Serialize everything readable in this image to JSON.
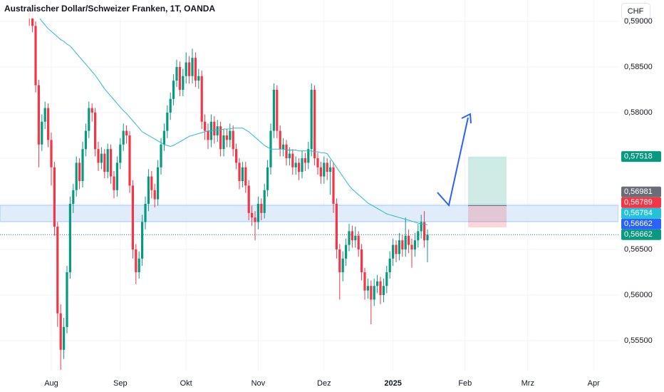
{
  "chart_data": {
    "type": "candlestick",
    "title": "Australischer Dollar/Schweizer Franken, 1T, OANDA",
    "currency": "CHF",
    "categories": [
      null,
      null,
      null,
      null,
      null,
      null,
      null,
      "Aug",
      null,
      null,
      null,
      null,
      null,
      null,
      null,
      null,
      null,
      null,
      null,
      null,
      null,
      null,
      null,
      null,
      null,
      null,
      null,
      null,
      null,
      "Sep",
      null,
      null,
      null,
      null,
      null,
      null,
      null,
      null,
      null,
      null,
      null,
      null,
      null,
      null,
      null,
      null,
      null,
      null,
      null,
      null,
      "Okt",
      null,
      null,
      null,
      null,
      null,
      null,
      null,
      null,
      null,
      null,
      null,
      null,
      null,
      null,
      null,
      null,
      null,
      null,
      null,
      null,
      null,
      null,
      "Nov",
      null,
      null,
      null,
      null,
      null,
      null,
      null,
      null,
      null,
      null,
      null,
      null,
      null,
      null,
      null,
      null,
      null,
      null,
      null,
      null,
      "Dez",
      null,
      null,
      null,
      null,
      null,
      null,
      null,
      null,
      null,
      null,
      null,
      null,
      null,
      null,
      null,
      null,
      null,
      null,
      null,
      null,
      null,
      "2025",
      null,
      null,
      null,
      null,
      null,
      null,
      null,
      null,
      null,
      null,
      null,
      null,
      null,
      null,
      null,
      null,
      null,
      null,
      null,
      null,
      null,
      null,
      "Feb",
      null,
      null,
      null,
      null,
      null,
      null,
      null,
      null,
      null,
      null,
      null,
      null,
      null,
      null,
      null,
      null,
      null,
      null,
      null,
      "Mrz",
      null,
      null,
      null,
      null,
      null,
      null,
      null,
      null,
      null,
      null,
      null,
      null,
      null,
      null,
      null,
      null,
      null,
      null,
      null,
      null,
      "Apr"
    ],
    "open": [
      0.591,
      0.5905,
      0.5895,
      0.583,
      0.5765,
      0.579,
      0.5805,
      0.577,
      0.574,
      0.5675,
      0.558,
      0.554,
      0.5565,
      0.5625,
      0.57,
      0.5715,
      0.5745,
      0.5725,
      0.576,
      0.578,
      0.5805,
      0.58,
      0.576,
      0.5745,
      0.5755,
      0.5735,
      0.576,
      0.573,
      0.5715,
      0.5745,
      0.5765,
      0.578,
      0.5775,
      0.572,
      0.565,
      0.5625,
      0.564,
      0.568,
      0.57,
      0.573,
      0.5715,
      0.5705,
      0.574,
      0.5765,
      0.578,
      0.58,
      0.5815,
      0.5835,
      0.585,
      0.5825,
      0.584,
      0.5855,
      0.584,
      0.586,
      0.5835,
      0.584,
      0.579,
      0.578,
      0.577,
      0.579,
      0.5775,
      0.5785,
      0.576,
      0.5775,
      0.577,
      0.578,
      0.576,
      0.5745,
      0.5725,
      0.574,
      0.572,
      0.569,
      0.5685,
      0.568,
      0.57,
      0.569,
      0.5715,
      0.574,
      0.578,
      0.5825,
      0.578,
      0.576,
      0.5765,
      0.575,
      0.5755,
      0.574,
      0.5745,
      0.5735,
      0.575,
      0.5745,
      0.576,
      0.5825,
      0.575,
      0.574,
      0.573,
      0.5745,
      0.5735,
      0.574,
      0.57,
      0.565,
      0.5625,
      0.564,
      0.5655,
      0.567,
      0.566,
      0.5665,
      0.565,
      0.5625,
      0.5605,
      0.561,
      0.5595,
      0.561,
      0.5615,
      0.56,
      0.561,
      0.5625,
      0.564,
      0.5655,
      0.5645,
      0.566,
      0.565,
      0.5665,
      0.5655,
      0.565,
      0.566,
      0.567,
      0.568,
      0.566,
      null,
      null,
      null,
      null,
      null,
      null,
      null,
      null,
      null,
      null,
      null,
      null,
      null,
      null,
      null,
      null,
      null,
      null,
      null,
      null,
      null,
      null,
      null,
      null,
      null,
      null,
      null,
      null,
      null,
      null,
      null,
      null,
      null,
      null,
      null,
      null,
      null,
      null,
      null,
      null,
      null,
      null,
      null,
      null,
      null,
      null,
      null,
      null,
      null,
      null,
      null,
      null,
      null
    ],
    "high": [
      0.593,
      0.5912,
      0.59,
      0.5836,
      0.5798,
      0.5812,
      0.581,
      0.5778,
      0.5746,
      0.568,
      0.559,
      0.5575,
      0.5632,
      0.5708,
      0.5722,
      0.5752,
      0.575,
      0.5768,
      0.5788,
      0.5812,
      0.581,
      0.5805,
      0.5768,
      0.5762,
      0.576,
      0.5766,
      0.5765,
      0.5736,
      0.5752,
      0.5772,
      0.5788,
      0.5786,
      0.578,
      0.5726,
      0.5656,
      0.5648,
      0.5688,
      0.5708,
      0.5738,
      0.5736,
      0.5722,
      0.5748,
      0.5772,
      0.5788,
      0.5808,
      0.5822,
      0.5842,
      0.5858,
      0.5856,
      0.5848,
      0.5866,
      0.5862,
      0.587,
      0.5866,
      0.5848,
      0.5846,
      0.5798,
      0.5788,
      0.5798,
      0.5796,
      0.5792,
      0.579,
      0.5782,
      0.5782,
      0.5788,
      0.5786,
      0.5766,
      0.575,
      0.5746,
      0.5746,
      0.5726,
      0.5698,
      0.5692,
      0.5708,
      0.5706,
      0.5722,
      0.5748,
      0.5788,
      0.5832,
      0.583,
      0.5786,
      0.5772,
      0.577,
      0.5762,
      0.576,
      0.5752,
      0.575,
      0.5758,
      0.5756,
      0.5768,
      0.5832,
      0.583,
      0.5756,
      0.5746,
      0.5752,
      0.575,
      0.5748,
      0.5746,
      0.5706,
      0.5656,
      0.5648,
      0.5662,
      0.5678,
      0.5676,
      0.5675,
      0.567,
      0.5656,
      0.563,
      0.5618,
      0.5616,
      0.5618,
      0.5622,
      0.562,
      0.5618,
      0.5632,
      0.5648,
      0.5662,
      0.566,
      0.5668,
      0.5666,
      0.5685,
      0.5672,
      0.5662,
      0.5668,
      0.5678,
      0.5688,
      0.5692,
      0.5672,
      null,
      null,
      null,
      null,
      null,
      null,
      null,
      null,
      null,
      null,
      null,
      null,
      null,
      null,
      null,
      null,
      null,
      null,
      null,
      null,
      null,
      null,
      null,
      null,
      null,
      null,
      null,
      null,
      null,
      null,
      null,
      null,
      null,
      null,
      null,
      null,
      null,
      null,
      null,
      null,
      null,
      null,
      null,
      null,
      null,
      null,
      null,
      null,
      null,
      null,
      null,
      null,
      null
    ],
    "low": [
      0.5895,
      0.5888,
      0.5822,
      0.574,
      0.5758,
      0.5782,
      0.5762,
      0.572,
      0.5665,
      0.5565,
      0.5518,
      0.553,
      0.5558,
      0.5618,
      0.569,
      0.5708,
      0.5716,
      0.5718,
      0.5752,
      0.5772,
      0.579,
      0.5752,
      0.5736,
      0.5738,
      0.5728,
      0.5728,
      0.5722,
      0.5706,
      0.5708,
      0.5738,
      0.5758,
      0.5766,
      0.5712,
      0.564,
      0.5612,
      0.5618,
      0.5632,
      0.5672,
      0.5692,
      0.5706,
      0.5696,
      0.5698,
      0.5732,
      0.5758,
      0.5772,
      0.5792,
      0.5808,
      0.5828,
      0.5818,
      0.5818,
      0.5832,
      0.5832,
      0.5832,
      0.5828,
      0.5826,
      0.5782,
      0.577,
      0.576,
      0.5762,
      0.5766,
      0.5768,
      0.5752,
      0.5752,
      0.5762,
      0.5762,
      0.5752,
      0.5738,
      0.5716,
      0.5718,
      0.5712,
      0.5682,
      0.5676,
      0.566,
      0.5672,
      0.5682,
      0.5684,
      0.5708,
      0.5732,
      0.5772,
      0.5772,
      0.5752,
      0.5752,
      0.5742,
      0.5742,
      0.5732,
      0.5732,
      0.5726,
      0.5728,
      0.5736,
      0.5738,
      0.5752,
      0.5742,
      0.5732,
      0.5722,
      0.5722,
      0.5726,
      0.571,
      0.569,
      0.564,
      0.5595,
      0.5615,
      0.5632,
      0.5648,
      0.5652,
      0.5652,
      0.5642,
      0.5616,
      0.5595,
      0.5596,
      0.5568,
      0.5588,
      0.5602,
      0.559,
      0.5592,
      0.5602,
      0.5618,
      0.5632,
      0.5636,
      0.5638,
      0.5642,
      0.5642,
      0.5646,
      0.563,
      0.5642,
      0.5652,
      0.5662,
      0.5652,
      0.5636,
      null,
      null,
      null,
      null,
      null,
      null,
      null,
      null,
      null,
      null,
      null,
      null,
      null,
      null,
      null,
      null,
      null,
      null,
      null,
      null,
      null,
      null,
      null,
      null,
      null,
      null,
      null,
      null,
      null,
      null,
      null,
      null,
      null,
      null,
      null,
      null,
      null,
      null,
      null,
      null,
      null,
      null,
      null,
      null,
      null,
      null,
      null,
      null,
      null,
      null,
      null,
      null,
      null
    ],
    "close": [
      0.5905,
      0.5895,
      0.583,
      0.5765,
      0.579,
      0.5805,
      0.577,
      0.574,
      0.5675,
      0.558,
      0.554,
      0.5565,
      0.5625,
      0.57,
      0.5715,
      0.5745,
      0.5725,
      0.576,
      0.578,
      0.5805,
      0.58,
      0.576,
      0.5745,
      0.5755,
      0.5735,
      0.576,
      0.573,
      0.5715,
      0.5745,
      0.5765,
      0.578,
      0.5775,
      0.572,
      0.565,
      0.5625,
      0.564,
      0.568,
      0.57,
      0.573,
      0.5715,
      0.5705,
      0.574,
      0.5765,
      0.578,
      0.58,
      0.5815,
      0.5835,
      0.585,
      0.5825,
      0.584,
      0.5855,
      0.584,
      0.586,
      0.5835,
      0.584,
      0.579,
      0.578,
      0.577,
      0.579,
      0.5775,
      0.5785,
      0.576,
      0.5775,
      0.577,
      0.578,
      0.576,
      0.5745,
      0.5725,
      0.574,
      0.572,
      0.569,
      0.5685,
      0.568,
      0.57,
      0.569,
      0.5715,
      0.574,
      0.578,
      0.5825,
      0.578,
      0.576,
      0.5765,
      0.575,
      0.5755,
      0.574,
      0.5745,
      0.5735,
      0.575,
      0.5745,
      0.576,
      0.5825,
      0.575,
      0.574,
      0.573,
      0.5745,
      0.5735,
      0.574,
      0.57,
      0.565,
      0.5625,
      0.564,
      0.5655,
      0.567,
      0.566,
      0.5665,
      0.565,
      0.5625,
      0.5605,
      0.561,
      0.5595,
      0.561,
      0.5615,
      0.56,
      0.561,
      0.5625,
      0.564,
      0.5655,
      0.5645,
      0.566,
      0.565,
      0.5665,
      0.5655,
      0.565,
      0.566,
      0.567,
      0.568,
      0.566,
      0.56662,
      null,
      null,
      null,
      null,
      null,
      null,
      null,
      null,
      null,
      null,
      null,
      null,
      null,
      null,
      null,
      null,
      null,
      null,
      null,
      null,
      null,
      null,
      null,
      null,
      null,
      null,
      null,
      null,
      null,
      null,
      null,
      null,
      null,
      null,
      null,
      null,
      null,
      null,
      null,
      null,
      null,
      null,
      null,
      null,
      null,
      null,
      null,
      null,
      null,
      null,
      null,
      null,
      null
    ],
    "moving_average": {
      "color": "#2ab8cc",
      "values": [
        0.592,
        0.5915,
        0.591,
        0.5905,
        0.59,
        0.5896,
        0.5892,
        0.5889,
        0.5886,
        0.5883,
        0.588,
        0.5878,
        0.5875,
        0.5873,
        0.5869,
        0.5865,
        0.5861,
        0.5857,
        0.5853,
        0.5849,
        0.5845,
        0.5841,
        0.5836,
        0.5831,
        0.5826,
        0.5822,
        0.5818,
        0.5814,
        0.581,
        0.5806,
        0.5802,
        0.5799,
        0.5795,
        0.5791,
        0.5787,
        0.5783,
        0.5779,
        0.5777,
        0.5775,
        0.5773,
        0.5771,
        0.5769,
        0.5767,
        0.5765,
        0.5764,
        0.5763,
        0.5764,
        0.5766,
        0.5768,
        0.577,
        0.5772,
        0.5774,
        0.5775,
        0.5776,
        0.5777,
        0.5778,
        0.5779,
        0.578,
        0.578,
        0.5781,
        0.5781,
        0.5781,
        0.5782,
        0.5782,
        0.5782,
        0.5783,
        0.5783,
        0.5783,
        0.5783,
        0.5781,
        0.5779,
        0.5776,
        0.5773,
        0.577,
        0.5767,
        0.5764,
        0.5762,
        0.576,
        0.576,
        0.576,
        0.576,
        0.576,
        0.5759,
        0.5759,
        0.5759,
        0.5759,
        0.5758,
        0.5758,
        0.5758,
        0.5758,
        0.5758,
        0.5757,
        0.5757,
        0.5756,
        0.5756,
        0.5755,
        0.575,
        0.5745,
        0.574,
        0.5735,
        0.573,
        0.5725,
        0.572,
        0.5716,
        0.5713,
        0.571,
        0.5707,
        0.5704,
        0.5701,
        0.5699,
        0.5697,
        0.5695,
        0.5693,
        0.5691,
        0.5689,
        0.5688,
        0.5687,
        0.5686,
        0.5685,
        0.5684,
        0.5683,
        0.5682,
        0.5681,
        0.568,
        0.5679,
        0.5678,
        0.5678,
        0.5677,
        null,
        null,
        null,
        null,
        null,
        null,
        null,
        null,
        null,
        null,
        null,
        null,
        null,
        null,
        null,
        null,
        null,
        null,
        null,
        null,
        null,
        null,
        null,
        null,
        null,
        null,
        null,
        null,
        null,
        null,
        null,
        null,
        null,
        null,
        null,
        null,
        null,
        null,
        null,
        null,
        null,
        null,
        null,
        null,
        null,
        null,
        null,
        null,
        null,
        null,
        null,
        null,
        null
      ]
    },
    "up_color": "#089981",
    "down_color": "#f23645",
    "ylim": [
      0.55172,
      0.59234
    ],
    "yticks": [
      {
        "value": 0.59,
        "label": "0,59000"
      },
      {
        "value": 0.585,
        "label": "0,58500"
      },
      {
        "value": 0.58,
        "label": "0,58000"
      },
      {
        "value": 0.575,
        "label": "0,57500"
      },
      {
        "value": 0.57,
        "label": "0,57000"
      },
      {
        "value": 0.565,
        "label": "0,56500"
      },
      {
        "value": 0.56,
        "label": "0,56000"
      },
      {
        "value": 0.555,
        "label": "0,55500"
      }
    ],
    "grid": true,
    "zone": {
      "high": 0.56984,
      "low": 0.56805,
      "color": "#dce9fa"
    },
    "price_labels": [
      {
        "value": 0.57518,
        "label": "0,57518",
        "color": "#089981"
      },
      {
        "value": 0.56981,
        "label": "0,56981",
        "color": "#6a6d78"
      },
      {
        "value": 0.56789,
        "label": "0,56789",
        "color": "#f23645"
      },
      {
        "value": 0.56784,
        "label": "0,56784",
        "color": "#22c3d9"
      },
      {
        "value": 0.56662,
        "label": "0,56662",
        "color": "#2962ff"
      },
      {
        "value": 0.56662,
        "label": "0,56662",
        "color": "#089981"
      }
    ]
  }
}
